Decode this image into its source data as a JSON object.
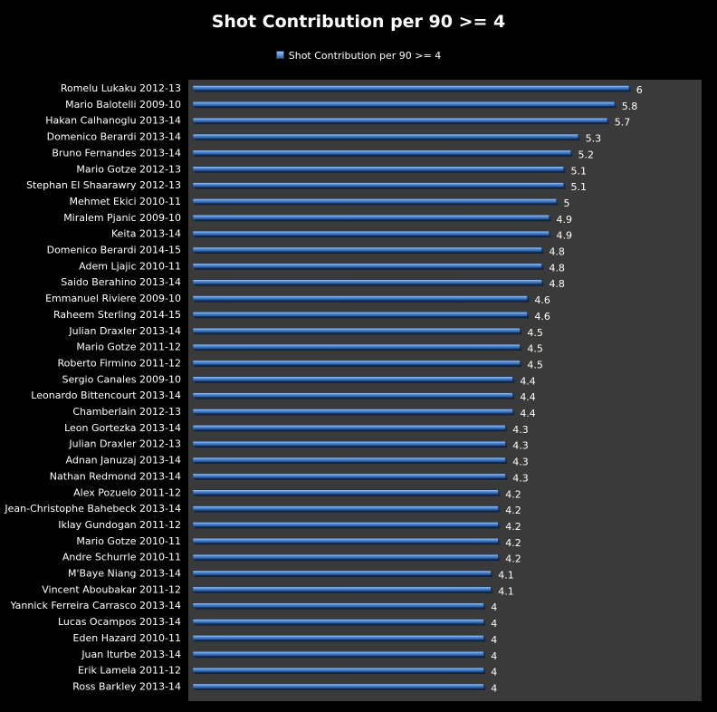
{
  "chart_data": {
    "type": "bar",
    "orientation": "horizontal",
    "title": "Shot Contribution per 90 >= 4",
    "legend": {
      "position": "top",
      "entries": [
        "Shot Contribution per 90 >= 4"
      ]
    },
    "xlim": [
      0,
      6.5
    ],
    "grid": false,
    "colors": {
      "bar": "#4a86d4",
      "plot_background": "#3a3a3a",
      "page_background": "#000000",
      "text": "#ffffff"
    },
    "series": [
      {
        "name": "Shot Contribution per 90 >= 4"
      }
    ],
    "categories": [
      "Romelu Lukaku 2012-13",
      "Mario Balotelli 2009-10",
      "Hakan Calhanoglu 2013-14",
      "Domenico Berardi 2013-14",
      "Bruno Fernandes 2013-14",
      "Mario Gotze 2012-13",
      "Stephan El Shaarawry 2012-13",
      "Mehmet Ekici 2010-11",
      "Miralem Pjanic 2009-10",
      "Keita 2013-14",
      "Domenico Berardi 2014-15",
      "Adem Ljajic 2010-11",
      "Saido Berahino 2013-14",
      "Emmanuel Riviere 2009-10",
      "Raheem Sterling 2014-15",
      "Julian Draxler 2013-14",
      "Mario Gotze 2011-12",
      "Roberto Firmino 2011-12",
      "Sergio Canales 2009-10",
      "Leonardo Bittencourt 2013-14",
      "Chamberlain 2012-13",
      "Leon Gortezka 2013-14",
      "Julian Draxler 2012-13",
      "Adnan Januzaj 2013-14",
      "Nathan Redmond 2013-14",
      "Alex Pozuelo 2011-12",
      "Jean-Christophe Bahebeck 2013-14",
      "Iklay Gundogan 2011-12",
      "Mario Gotze 2010-11",
      "Andre Schurrle 2010-11",
      "M'Baye Niang 2013-14",
      "Vincent Aboubakar 2011-12",
      "Yannick Ferreira Carrasco 2013-14",
      "Lucas Ocampos 2013-14",
      "Eden Hazard 2010-11",
      "Juan Iturbe 2013-14",
      "Erik Lamela 2011-12",
      "Ross Barkley 2013-14"
    ],
    "values": [
      6,
      5.8,
      5.7,
      5.3,
      5.2,
      5.1,
      5.1,
      5,
      4.9,
      4.9,
      4.8,
      4.8,
      4.8,
      4.6,
      4.6,
      4.5,
      4.5,
      4.5,
      4.4,
      4.4,
      4.4,
      4.3,
      4.3,
      4.3,
      4.3,
      4.2,
      4.2,
      4.2,
      4.2,
      4.2,
      4.1,
      4.1,
      4,
      4,
      4,
      4,
      4,
      4
    ],
    "value_labels": [
      "6",
      "5.8",
      "5.7",
      "5.3",
      "5.2",
      "5.1",
      "5.1",
      "5",
      "4.9",
      "4.9",
      "4.8",
      "4.8",
      "4.8",
      "4.6",
      "4.6",
      "4.5",
      "4.5",
      "4.5",
      "4.4",
      "4.4",
      "4.4",
      "4.3",
      "4.3",
      "4.3",
      "4.3",
      "4.2",
      "4.2",
      "4.2",
      "4.2",
      "4.2",
      "4.1",
      "4.1",
      "4",
      "4",
      "4",
      "4",
      "4",
      "4"
    ]
  }
}
